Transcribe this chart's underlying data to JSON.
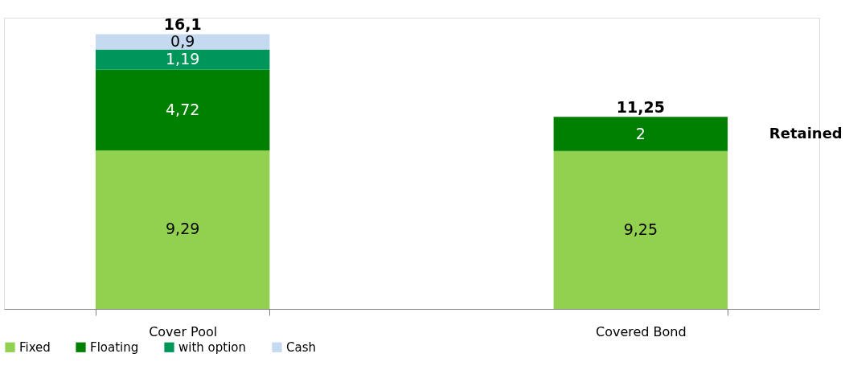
{
  "chart_data": {
    "type": "bar",
    "stacked": true,
    "categories": [
      "Cover Pool",
      "Covered Bond"
    ],
    "series": [
      {
        "name": "Fixed",
        "color": "#92d050",
        "values": [
          9.29,
          9.25
        ],
        "value_labels": [
          "9,29",
          "9,25"
        ]
      },
      {
        "name": "Floating",
        "color": "#008000",
        "values": [
          4.72,
          2
        ],
        "value_labels": [
          "4,72",
          "2"
        ]
      },
      {
        "name": "with option",
        "color": "#00965a",
        "values": [
          1.19,
          null
        ],
        "value_labels": [
          "1,19",
          null
        ]
      },
      {
        "name": "Cash",
        "color": "#c5d9f1",
        "values": [
          0.9,
          null
        ],
        "value_labels": [
          "0,9",
          null
        ]
      }
    ],
    "totals": [
      "16,1",
      "11,25"
    ],
    "annotations": [
      "Retained"
    ],
    "legend": "bottom",
    "grid": false,
    "tick_labels": "x"
  }
}
